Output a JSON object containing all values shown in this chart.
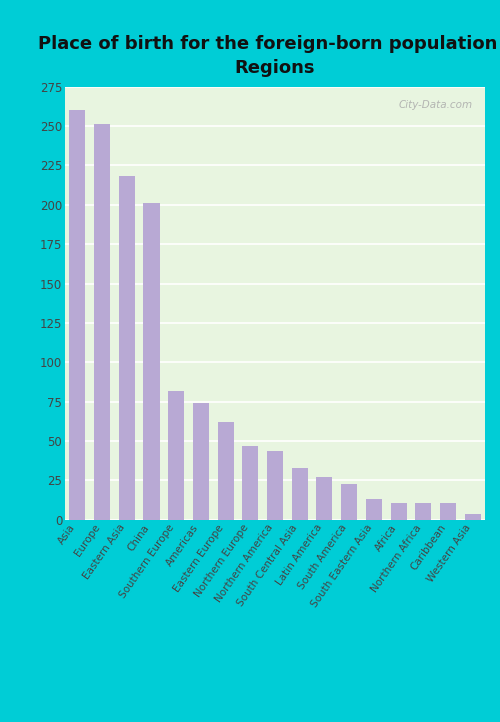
{
  "title": "Place of birth for the foreign-born population -\nRegions",
  "categories": [
    "Asia",
    "Europe",
    "Eastern Asia",
    "China",
    "Southern Europe",
    "Americas",
    "Eastern Europe",
    "Northern Europe",
    "Northern America",
    "South Central Asia",
    "Latin America",
    "South America",
    "South Eastern Asia",
    "Africa",
    "Northern Africa",
    "Caribbean",
    "Western Asia"
  ],
  "values": [
    260,
    251,
    218,
    201,
    82,
    74,
    62,
    47,
    44,
    33,
    27,
    23,
    13,
    11,
    11,
    11,
    4
  ],
  "bar_color": "#b8a9d4",
  "background_outer": "#00cdd6",
  "background_inner": "#e8f5e0",
  "title_fontsize": 13,
  "tick_fontsize": 7.5,
  "ytick_fontsize": 8.5,
  "ylim": [
    0,
    275
  ],
  "yticks": [
    0,
    25,
    50,
    75,
    100,
    125,
    150,
    175,
    200,
    225,
    250,
    275
  ],
  "watermark": "City-Data.com"
}
